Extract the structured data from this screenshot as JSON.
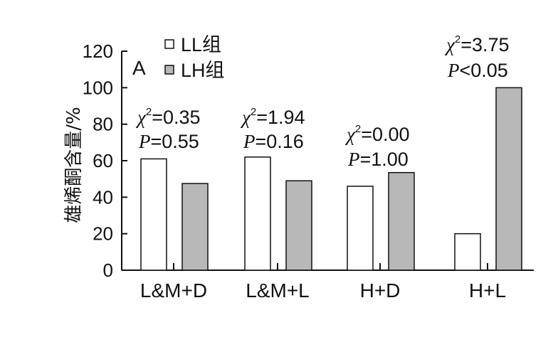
{
  "chart_data": {
    "type": "bar",
    "panel_label": "A",
    "ylabel": "雄烯酮含量/%",
    "ylim": [
      0,
      120
    ],
    "yticks": [
      0,
      20,
      40,
      60,
      80,
      100,
      120
    ],
    "categories": [
      "L&M+D",
      "L&M+L",
      "H+D",
      "H+L"
    ],
    "series": [
      {
        "name": "LL组",
        "color": "#ffffff",
        "values": [
          61,
          62,
          46,
          20
        ]
      },
      {
        "name": "LH组",
        "color": "#b8b8b8",
        "values": [
          47.5,
          49,
          53.5,
          100
        ]
      }
    ],
    "legend_position": "top-left",
    "grid": false,
    "annotations": [
      {
        "chi_label": "χ",
        "chi_sup": "2",
        "chi_value": "=0.35",
        "p_label": "P",
        "p_value": "=0.55"
      },
      {
        "chi_label": "χ",
        "chi_sup": "2",
        "chi_value": "=1.94",
        "p_label": "P",
        "p_value": "=0.16"
      },
      {
        "chi_label": "χ",
        "chi_sup": "2",
        "chi_value": "=0.00",
        "p_label": "P",
        "p_value": "=1.00"
      },
      {
        "chi_label": "χ",
        "chi_sup": "2",
        "chi_value": "=3.75",
        "p_label": "P",
        "p_value": "<0.05"
      }
    ]
  }
}
